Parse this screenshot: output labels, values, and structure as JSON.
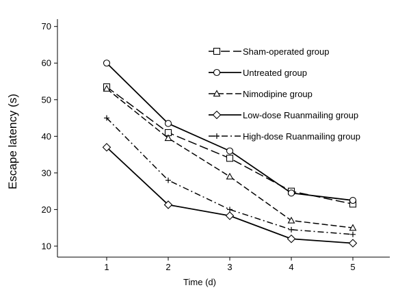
{
  "chart_data": {
    "type": "line",
    "title": "",
    "xlabel": "Time (d)",
    "ylabel": "Escape latency (s)",
    "x": [
      1,
      2,
      3,
      4,
      5
    ],
    "xticks": [
      "1",
      "2",
      "3",
      "4",
      "5"
    ],
    "xlim": [
      0.2,
      5.6
    ],
    "ylim": [
      7,
      72
    ],
    "yticks": [
      10,
      20,
      30,
      40,
      50,
      60,
      70
    ],
    "grid": false,
    "legend_position": "top-right",
    "series": [
      {
        "name": "Sham-operated group",
        "marker": "square",
        "line": "dashed-long",
        "values": [
          53.5,
          41,
          34,
          25,
          21.5
        ]
      },
      {
        "name": "Untreated group",
        "marker": "circle",
        "line": "solid",
        "values": [
          60,
          43.5,
          36,
          24.5,
          22.5
        ]
      },
      {
        "name": "Nimodipine group",
        "marker": "triangle",
        "line": "dashed",
        "values": [
          53,
          39.5,
          29,
          17,
          15
        ]
      },
      {
        "name": "Low-dose Ruanmailing group",
        "marker": "diamond",
        "line": "solid",
        "values": [
          37,
          21.3,
          18.3,
          12,
          10.8
        ]
      },
      {
        "name": "High-dose Ruanmailing group",
        "marker": "plus",
        "line": "dash-dot",
        "values": [
          45,
          28,
          20,
          14.5,
          13.2
        ]
      }
    ]
  }
}
